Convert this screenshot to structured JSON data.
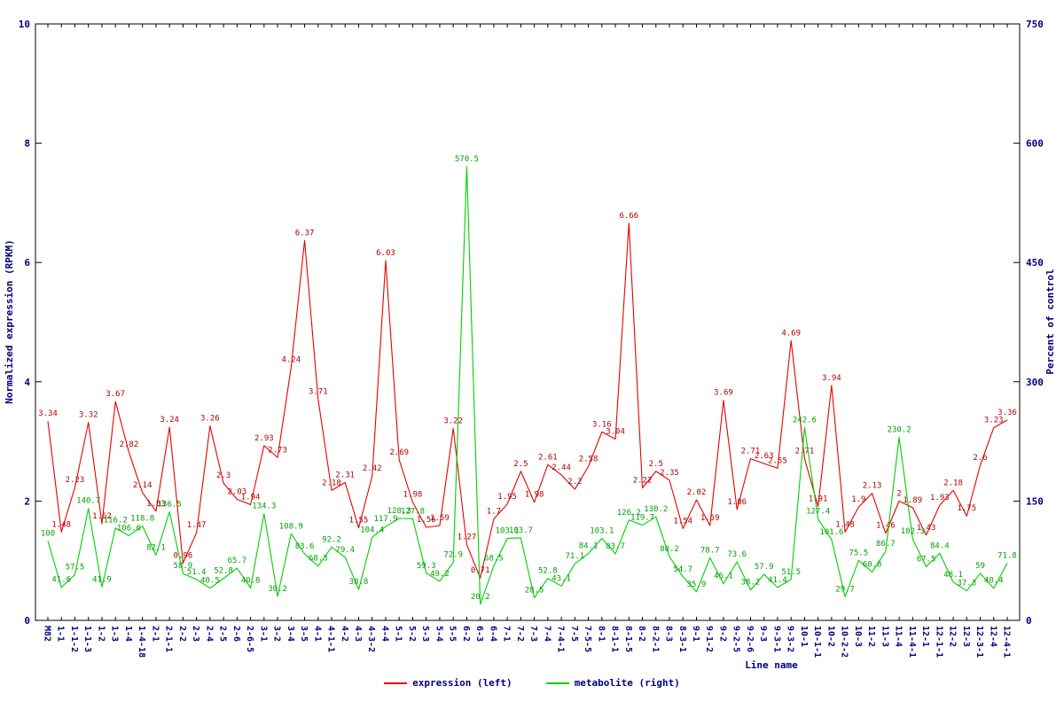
{
  "chart_data": {
    "type": "line",
    "title": "",
    "xlabel": "Line name",
    "ylabel_left": "Normalized expression (RPKM)",
    "ylabel_right": "Percent of control",
    "ylim_left": [
      0,
      10
    ],
    "ylim_right": [
      0,
      750
    ],
    "yticks_left": [
      0,
      2,
      4,
      6,
      8,
      10
    ],
    "yticks_right": [
      0,
      150,
      300,
      450,
      600,
      750
    ],
    "grid": false,
    "legend_position": "bottom-center",
    "axis_text_color": "#000080",
    "axis_line_color": "#000000",
    "categories": [
      "M82",
      "1-1",
      "1-1-2",
      "1-1-3",
      "1-2",
      "1-3",
      "1-4",
      "1-4-18",
      "2-1",
      "2-1-1",
      "2-2",
      "2-3",
      "2-4",
      "2-5",
      "2-6",
      "2-6-5",
      "3-1",
      "3-2",
      "3-4",
      "3-5",
      "4-1",
      "4-1-1",
      "4-2",
      "4-3",
      "4-3-2",
      "4-4",
      "5-1",
      "5-2",
      "5-3",
      "5-4",
      "5-5",
      "6-2",
      "6-3",
      "6-4",
      "7-1",
      "7-2",
      "7-3",
      "7-4",
      "7-4-1",
      "7-5",
      "7-5-5",
      "8-1",
      "8-1-1",
      "8-1-5",
      "8-2",
      "8-2-1",
      "8-3",
      "8-3-1",
      "9-1",
      "9-1-2",
      "9-2",
      "9-2-5",
      "9-2-6",
      "9-3",
      "9-3-1",
      "9-3-2",
      "10-1",
      "10-1-1",
      "10-2",
      "10-2-2",
      "10-3",
      "11-2",
      "11-3",
      "11-4",
      "11-4-1",
      "12-1",
      "12-1-1",
      "12-2",
      "12-3",
      "12-3-1",
      "12-4",
      "12-4-1"
    ],
    "series": [
      {
        "name": "expression (left)",
        "data_name": "expression",
        "axis": "left",
        "color": "#e80000",
        "label_color": "#b00000",
        "values": [
          3.34,
          1.48,
          2.23,
          3.32,
          1.62,
          3.67,
          2.82,
          2.14,
          1.83,
          3.24,
          0.96,
          1.47,
          3.26,
          2.3,
          2.03,
          1.94,
          2.93,
          2.73,
          4.24,
          6.37,
          3.71,
          2.18,
          2.31,
          1.55,
          2.42,
          6.03,
          2.69,
          1.98,
          1.56,
          1.59,
          3.22,
          1.27,
          0.71,
          1.7,
          1.95,
          2.5,
          1.98,
          2.61,
          2.44,
          2.2,
          2.58,
          3.16,
          3.04,
          6.66,
          2.22,
          2.5,
          2.35,
          1.54,
          2.02,
          1.59,
          3.69,
          1.86,
          2.71,
          2.63,
          2.55,
          4.69,
          2.71,
          1.91,
          3.94,
          1.48,
          1.9,
          2.13,
          1.46,
          2.0,
          1.89,
          1.43,
          1.93,
          2.18,
          1.75,
          2.6,
          3.23,
          3.36
        ]
      },
      {
        "name": "metabolite (right)",
        "data_name": "metabolite",
        "axis": "right",
        "color": "#00d000",
        "label_color": "#00a000",
        "values": [
          100,
          41.6,
          57.5,
          140.7,
          41.9,
          116.2,
          106.6,
          118.8,
          82.1,
          136.5,
          58.9,
          51.4,
          40.5,
          52.8,
          65.7,
          40.8,
          134.3,
          30.2,
          108.9,
          83.6,
          68.3,
          92.2,
          79.4,
          38.8,
          104.4,
          117.9,
          128.3,
          127.8,
          59.3,
          49.2,
          72.9,
          570.5,
          20.2,
          68.5,
          103.1,
          103.7,
          28.5,
          52.8,
          43.1,
          71.1,
          84.1,
          103.1,
          83.7,
          126.2,
          119.7,
          130.2,
          80.2,
          54.7,
          35.9,
          78.7,
          46.1,
          73.6,
          38.2,
          57.9,
          41.4,
          51.5,
          242.6,
          127.4,
          101.6,
          29.7,
          75.5,
          60.8,
          86.7,
          230.2,
          102.3,
          67.5,
          84.4,
          48.1,
          37.3,
          59,
          40.4,
          71.8
        ]
      }
    ]
  }
}
